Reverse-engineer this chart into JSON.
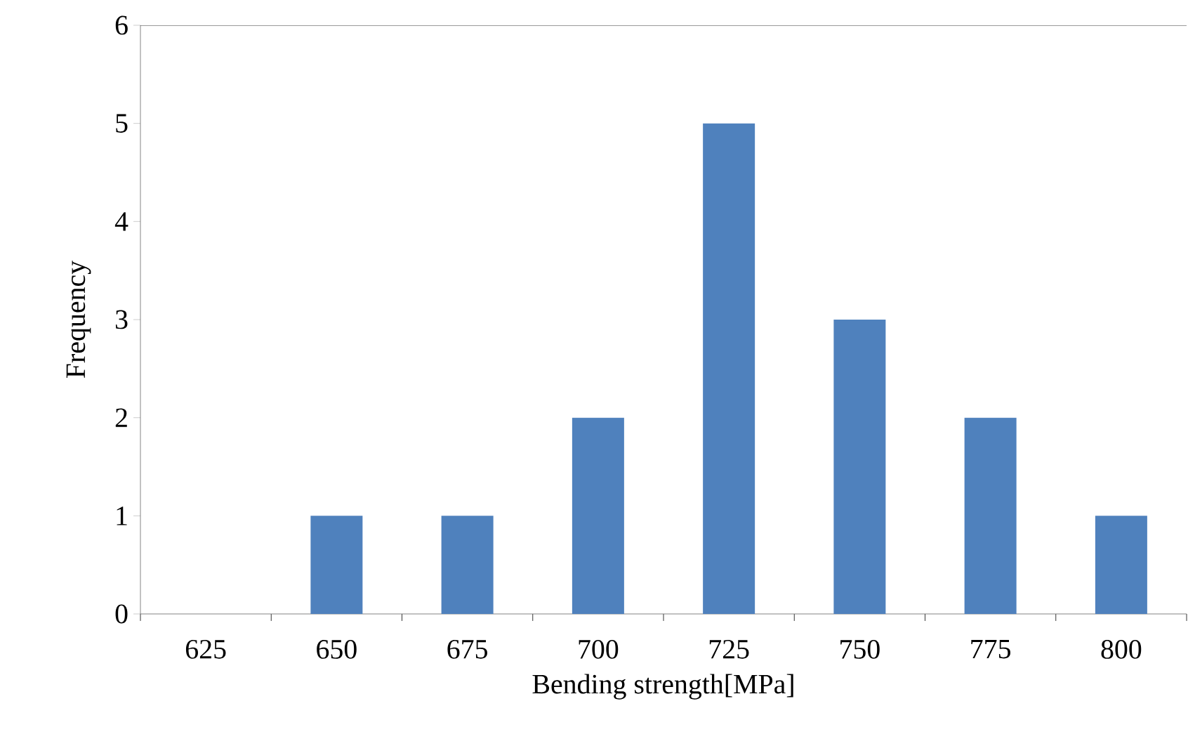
{
  "chart_data": {
    "type": "bar",
    "xlabel": "Bending strength[MPa]",
    "ylabel": "Frequency",
    "categories": [
      "625",
      "650",
      "675",
      "700",
      "725",
      "750",
      "775",
      "800"
    ],
    "values": [
      0,
      1,
      1,
      2,
      5,
      3,
      2,
      1
    ],
    "color": "#4f81bd",
    "ylim": [
      0,
      6
    ],
    "yticks": [
      0,
      1,
      2,
      3,
      4,
      5,
      6
    ],
    "grid": false
  }
}
